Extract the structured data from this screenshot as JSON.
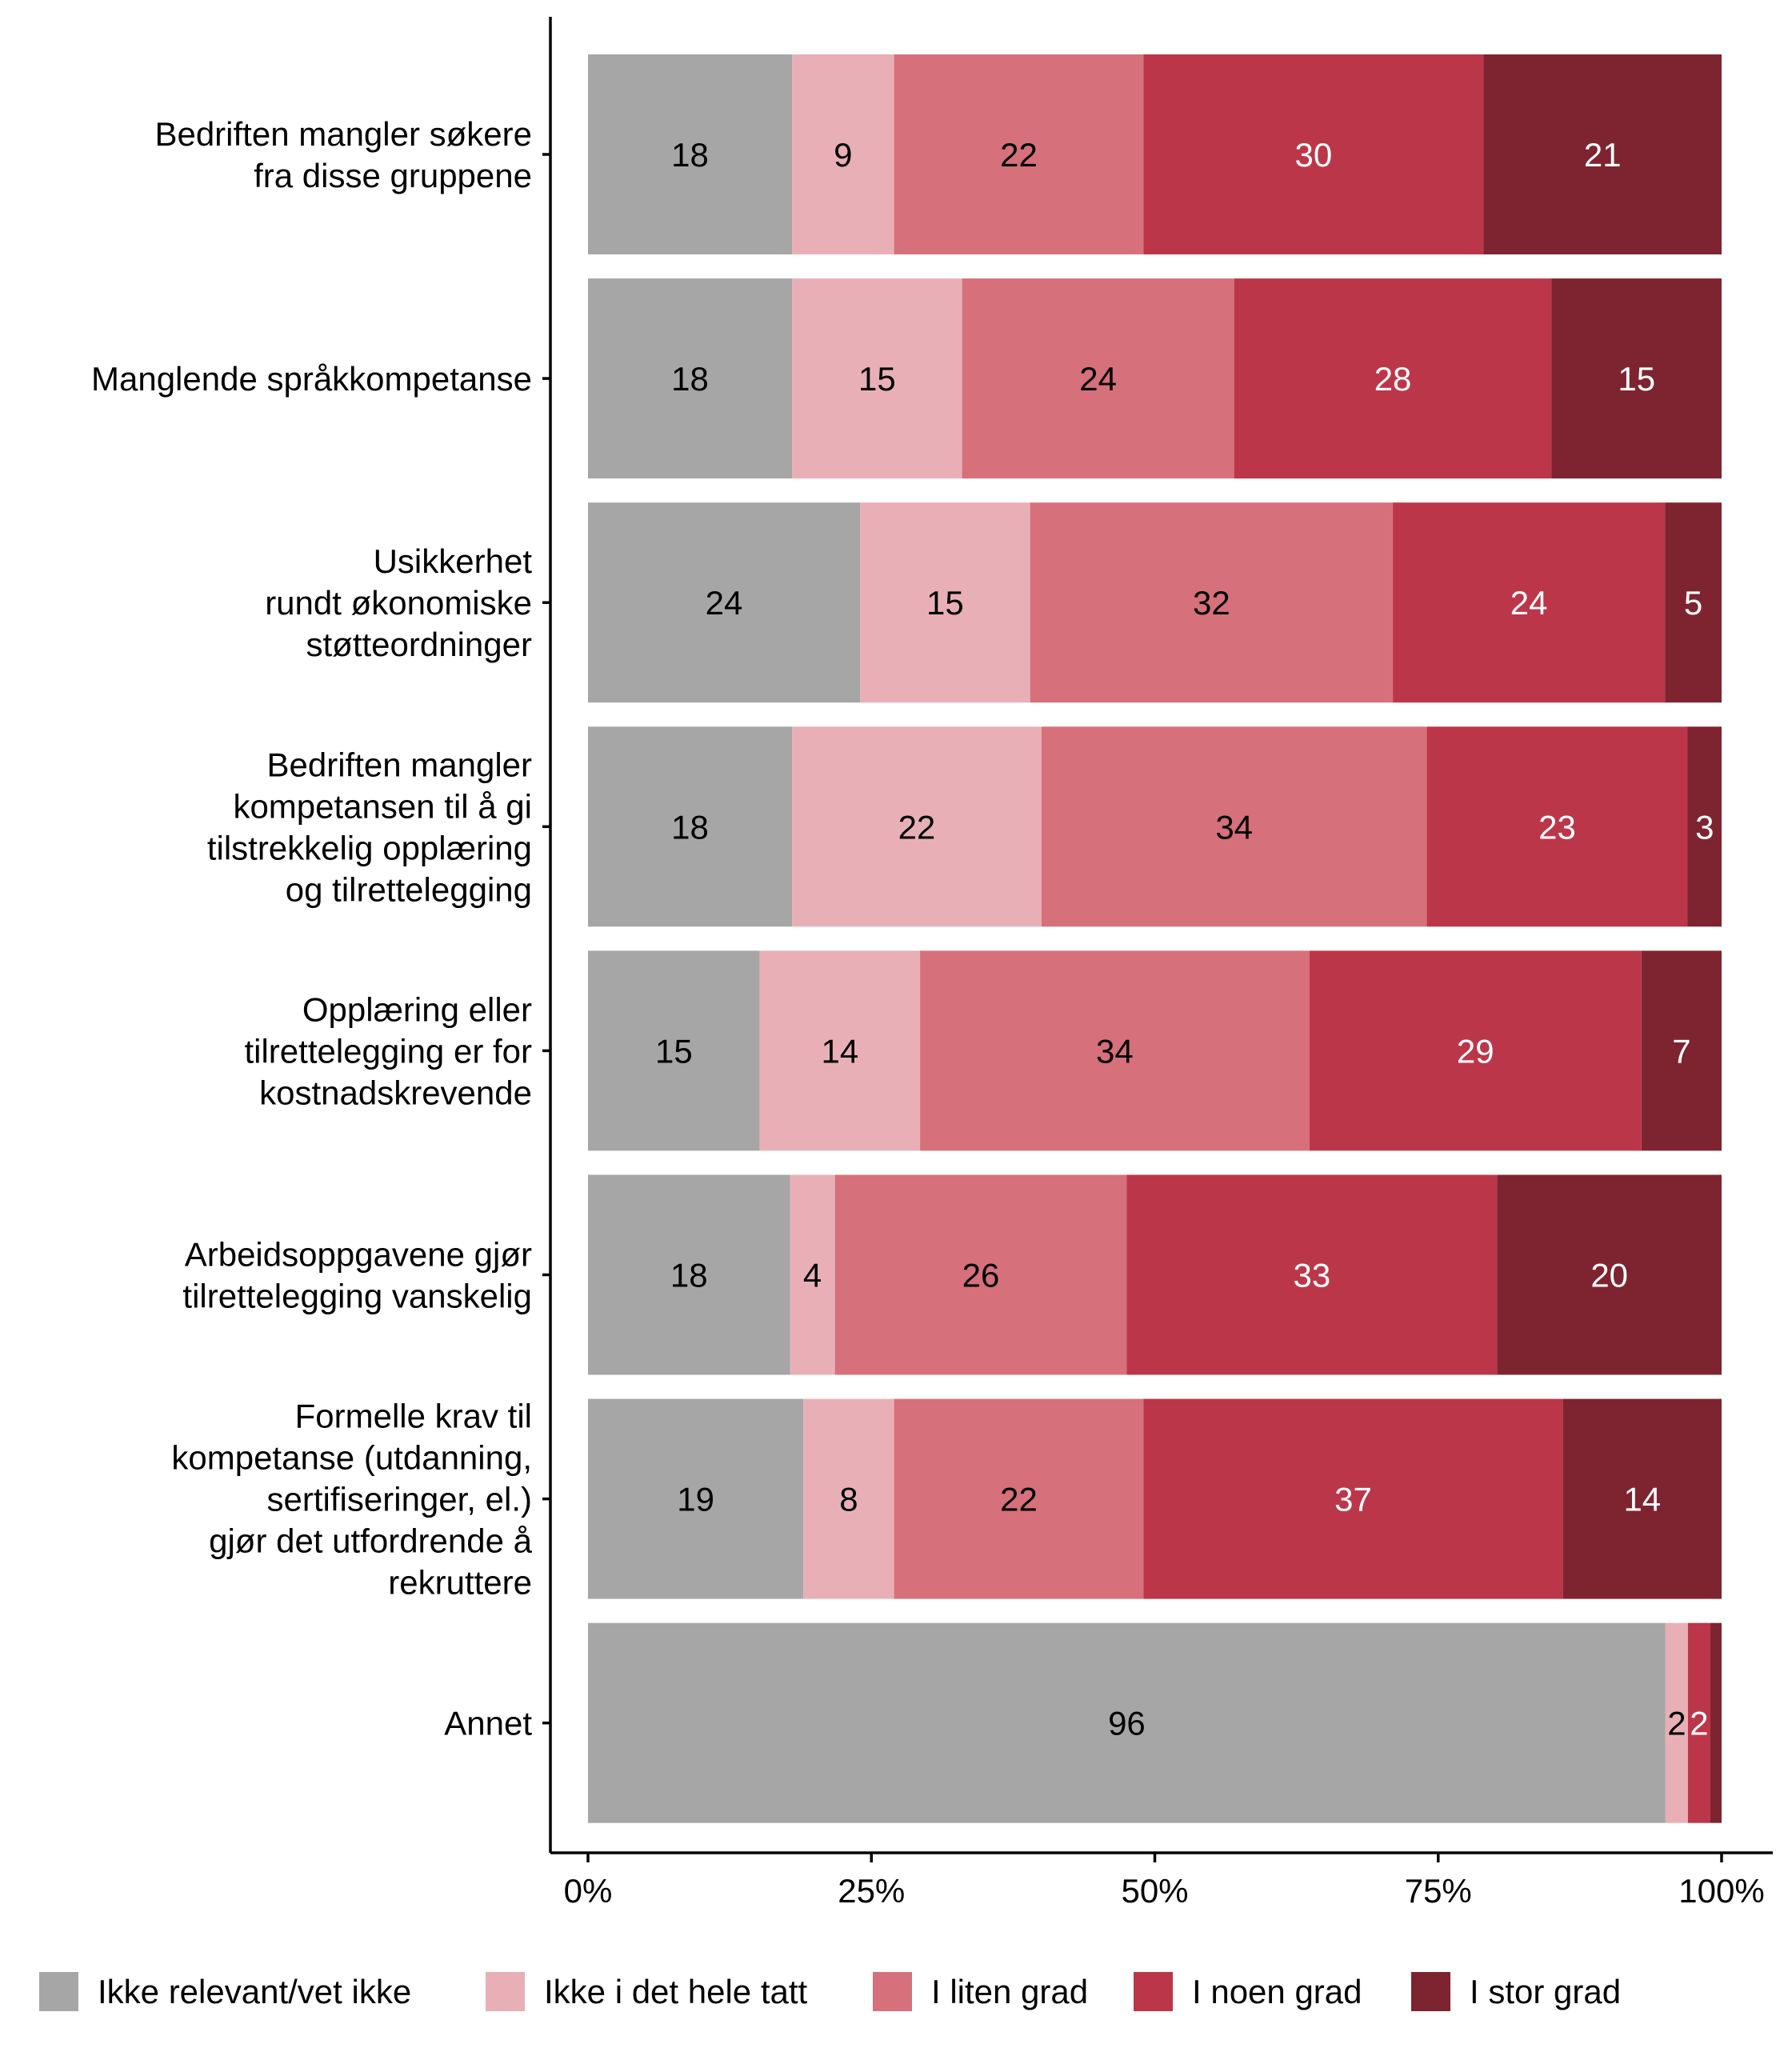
{
  "chart_data": {
    "type": "bar",
    "orientation": "horizontal",
    "stacked": "percent",
    "title": "",
    "xlabel": "",
    "ylabel": "",
    "xlim": [
      0,
      100
    ],
    "x_ticks": [
      "0%",
      "25%",
      "50%",
      "75%",
      "100%"
    ],
    "grid": false,
    "legend_position": "bottom",
    "categories": [
      [
        "Bedriften mangler søkere",
        "fra disse gruppene"
      ],
      [
        "Manglende språkkompetanse"
      ],
      [
        "Usikkerhet",
        "rundt økonomiske",
        "støtteordninger"
      ],
      [
        "Bedriften mangler",
        "kompetansen til å gi",
        "tilstrekkelig opplæring",
        "og tilrettelegging"
      ],
      [
        "Opplæring eller",
        "tilrettelegging er for",
        "kostnadskrevende"
      ],
      [
        "Arbeidsoppgavene gjør",
        "tilrettelegging vanskelig"
      ],
      [
        "Formelle krav til",
        "kompetanse (utdanning,",
        "sertifiseringer, el.)",
        "gjør det utfordrende å",
        "rekruttere"
      ],
      [
        "Annet"
      ]
    ],
    "series": [
      {
        "name": "Ikke relevant/vet ikke",
        "color": "#A6A6A6",
        "label_color": "#000000",
        "values": [
          18,
          18,
          24,
          18,
          15,
          18,
          19,
          96
        ]
      },
      {
        "name": "Ikke i det hele tatt",
        "color": "#E8B0B6",
        "label_color": "#000000",
        "values": [
          9,
          15,
          15,
          22,
          14,
          4,
          8,
          2
        ]
      },
      {
        "name": "I liten grad",
        "color": "#D6707B",
        "label_color": "#000000",
        "values": [
          22,
          24,
          32,
          34,
          34,
          26,
          22,
          0
        ]
      },
      {
        "name": "I noen grad",
        "color": "#BC3649",
        "label_color": "#FFFFFF",
        "values": [
          30,
          28,
          24,
          23,
          29,
          33,
          37,
          2
        ]
      },
      {
        "name": "I stor grad",
        "color": "#7E2430",
        "label_color": "#FFFFFF",
        "values": [
          21,
          15,
          5,
          3,
          7,
          20,
          14,
          1
        ]
      }
    ]
  }
}
